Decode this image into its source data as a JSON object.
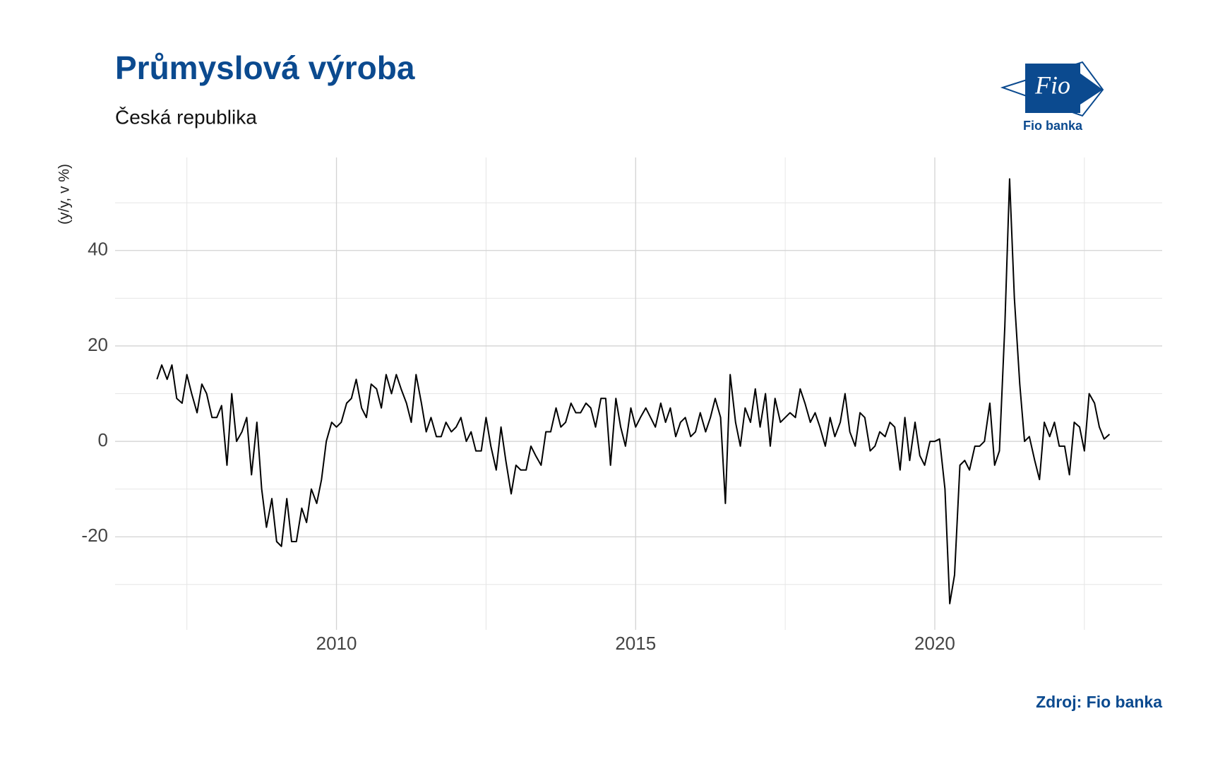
{
  "logo": {
    "mark": "Fio",
    "name": "Fio banka"
  },
  "chart_data": {
    "type": "line",
    "title": "Průmyslová výroba",
    "subtitle": "Česká republika",
    "y_label": "(y/y, v %)",
    "source": "Zdroj: Fio banka",
    "color": "#000000",
    "grid": true,
    "xlim": [
      2006.3,
      2023.8
    ],
    "xticks": [
      2010,
      2015,
      2020
    ],
    "ylim": [
      -39.5,
      59.5
    ],
    "yticks": [
      -20,
      0,
      20,
      40
    ],
    "x": [
      2007.0,
      2007.08,
      2007.17,
      2007.25,
      2007.33,
      2007.42,
      2007.5,
      2007.58,
      2007.67,
      2007.75,
      2007.83,
      2007.92,
      2008.0,
      2008.08,
      2008.17,
      2008.25,
      2008.33,
      2008.42,
      2008.5,
      2008.58,
      2008.67,
      2008.75,
      2008.83,
      2008.92,
      2009.0,
      2009.08,
      2009.17,
      2009.25,
      2009.33,
      2009.42,
      2009.5,
      2009.58,
      2009.67,
      2009.75,
      2009.83,
      2009.92,
      2010.0,
      2010.08,
      2010.17,
      2010.25,
      2010.33,
      2010.42,
      2010.5,
      2010.58,
      2010.67,
      2010.75,
      2010.83,
      2010.92,
      2011.0,
      2011.08,
      2011.17,
      2011.25,
      2011.33,
      2011.42,
      2011.5,
      2011.58,
      2011.67,
      2011.75,
      2011.83,
      2011.92,
      2012.0,
      2012.08,
      2012.17,
      2012.25,
      2012.33,
      2012.42,
      2012.5,
      2012.58,
      2012.67,
      2012.75,
      2012.83,
      2012.92,
      2013.0,
      2013.08,
      2013.17,
      2013.25,
      2013.33,
      2013.42,
      2013.5,
      2013.58,
      2013.67,
      2013.75,
      2013.83,
      2013.92,
      2014.0,
      2014.08,
      2014.17,
      2014.25,
      2014.33,
      2014.42,
      2014.5,
      2014.58,
      2014.67,
      2014.75,
      2014.83,
      2014.92,
      2015.0,
      2015.08,
      2015.17,
      2015.25,
      2015.33,
      2015.42,
      2015.5,
      2015.58,
      2015.67,
      2015.75,
      2015.83,
      2015.92,
      2016.0,
      2016.08,
      2016.17,
      2016.25,
      2016.33,
      2016.42,
      2016.5,
      2016.58,
      2016.67,
      2016.75,
      2016.83,
      2016.92,
      2017.0,
      2017.08,
      2017.17,
      2017.25,
      2017.33,
      2017.42,
      2017.5,
      2017.58,
      2017.67,
      2017.75,
      2017.83,
      2017.92,
      2018.0,
      2018.08,
      2018.17,
      2018.25,
      2018.33,
      2018.42,
      2018.5,
      2018.58,
      2018.67,
      2018.75,
      2018.83,
      2018.92,
      2019.0,
      2019.08,
      2019.17,
      2019.25,
      2019.33,
      2019.42,
      2019.5,
      2019.58,
      2019.67,
      2019.75,
      2019.83,
      2019.92,
      2020.0,
      2020.08,
      2020.17,
      2020.25,
      2020.33,
      2020.42,
      2020.5,
      2020.58,
      2020.67,
      2020.75,
      2020.83,
      2020.92,
      2021.0,
      2021.08,
      2021.17,
      2021.25,
      2021.33,
      2021.42,
      2021.5,
      2021.58,
      2021.67,
      2021.75,
      2021.83,
      2021.92,
      2022.0,
      2022.08,
      2022.17,
      2022.25,
      2022.33,
      2022.42,
      2022.5,
      2022.58,
      2022.67,
      2022.75,
      2022.83,
      2022.92
    ],
    "values": [
      13,
      16,
      13,
      16,
      9,
      8,
      14,
      10,
      6,
      12,
      10,
      5,
      5,
      7.5,
      -5,
      10,
      0,
      2,
      5,
      -7,
      4,
      -10,
      -18,
      -12,
      -21,
      -22,
      -12,
      -21,
      -21,
      -14,
      -17,
      -10,
      -13,
      -8,
      0,
      4,
      3,
      4,
      8,
      9,
      13,
      7,
      5,
      12,
      11,
      7,
      14,
      10,
      14,
      11,
      8,
      4,
      14,
      8,
      2,
      5,
      1,
      1,
      4,
      2,
      3,
      5,
      0,
      2,
      -2,
      -2,
      5,
      -1,
      -6,
      3,
      -4,
      -11,
      -5,
      -6,
      -6,
      -1,
      -3,
      -5,
      2,
      2,
      7,
      3,
      4,
      8,
      6,
      6,
      8,
      7,
      3,
      9,
      9,
      -5,
      9,
      3,
      -1,
      7,
      3,
      5,
      7,
      5,
      3,
      8,
      4,
      7,
      1,
      4,
      5,
      1,
      2,
      6,
      2,
      5,
      9,
      5,
      -13,
      14,
      4,
      -1,
      7,
      4,
      11,
      3,
      10,
      -1,
      9,
      4,
      5,
      6,
      5,
      11,
      8,
      4,
      6,
      3,
      -1,
      5,
      1,
      4,
      10,
      2,
      -1,
      6,
      5,
      -2,
      -1,
      2,
      1,
      4,
      3,
      -6,
      5,
      -4,
      4,
      -3,
      -5,
      0,
      0,
      0.5,
      -10,
      -34,
      -28,
      -5,
      -4,
      -6,
      -1,
      -1,
      0,
      8,
      -5,
      -2,
      24,
      55,
      30,
      12,
      0,
      1,
      -4,
      -8,
      4,
      1,
      4,
      -1,
      -1,
      -7,
      4,
      3,
      -2,
      10,
      8,
      3,
      0.5,
      1.5
    ]
  }
}
